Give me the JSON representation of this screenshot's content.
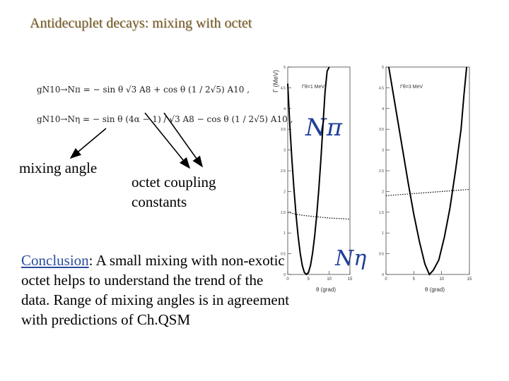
{
  "slide": {
    "title": "Antidecuplet decays: mixing with octet",
    "equations": {
      "eq1_text": "gN10→Nπ = − sin θ √3 A8 + cos θ (1 / 2√5) A10 ,",
      "eq2_text": "gN10→Nη = − sin θ (4α − 1) / √3 A8 − cos θ (1 / 2√5) A10 ,"
    },
    "labels": {
      "mixing_angle": "mixing angle",
      "octet_coupling_line1": "octet coupling",
      "octet_coupling_line2": "constants"
    },
    "conclusion": {
      "keyword": "Conclusion",
      "text": ": A small mixing with non-exotic octet helps to understand the trend of the data. Range of mixing angles is in agreement with predictions of Ch.QSM"
    },
    "symbols": {
      "n_pi": "Nπ",
      "n_eta": "Nη"
    },
    "colors": {
      "title": "#7a5a1e",
      "accent": "#2a4b9b",
      "symbol": "#1f3f9a"
    }
  },
  "chart_data": [
    {
      "type": "line",
      "ylabel": "Γ (MeV)",
      "xlabel": "θ (grad)",
      "annotation": "Γθ=1 MeV",
      "xlim": [
        0,
        15
      ],
      "ylim": [
        0,
        5
      ],
      "x_ticks": [
        0,
        5,
        10,
        15
      ],
      "y_ticks": [
        0,
        0.5,
        1,
        1.5,
        2,
        2.5,
        3,
        3.5,
        4,
        4.5,
        5
      ],
      "series": [
        {
          "style": "solid",
          "x": [
            0,
            0.5,
            1,
            1.5,
            2,
            2.5,
            3,
            3.5,
            4,
            4.5,
            5,
            5.5,
            6,
            6.5,
            7,
            7.5,
            8,
            8.5,
            9,
            9.5,
            10
          ],
          "values": [
            4.6,
            3.6,
            2.78,
            2.06,
            1.44,
            0.93,
            0.52,
            0.22,
            0.05,
            0.0,
            0.05,
            0.22,
            0.52,
            0.93,
            1.44,
            2.06,
            2.78,
            3.6,
            4.4,
            4.9,
            5.0
          ]
        },
        {
          "style": "dotted",
          "x": [
            0,
            2,
            4,
            6,
            8,
            10,
            12,
            14,
            15
          ],
          "values": [
            1.5,
            1.45,
            1.42,
            1.4,
            1.38,
            1.36,
            1.35,
            1.34,
            1.33
          ]
        }
      ]
    },
    {
      "type": "line",
      "ylabel": "",
      "xlabel": "θ (grad)",
      "annotation": "Γθ=3 MeV",
      "xlim": [
        0,
        15
      ],
      "ylim": [
        0,
        5
      ],
      "x_ticks": [
        0,
        5,
        10,
        15
      ],
      "y_ticks": [
        0,
        0.5,
        1,
        1.5,
        2,
        2.5,
        3,
        3.5,
        4,
        4.5,
        5
      ],
      "series": [
        {
          "style": "solid",
          "x": [
            0.5,
            1,
            2,
            3,
            4,
            5,
            6,
            7,
            7.8,
            8.5,
            9.5,
            10.5,
            11.5,
            12.5,
            13.5,
            14,
            14.5
          ],
          "values": [
            5.0,
            4.6,
            3.8,
            3.0,
            2.2,
            1.45,
            0.8,
            0.25,
            0.0,
            0.1,
            0.35,
            0.9,
            1.6,
            2.5,
            3.5,
            4.3,
            5.0
          ]
        },
        {
          "style": "dotted",
          "x": [
            0,
            3,
            6,
            9,
            12,
            15
          ],
          "values": [
            1.9,
            1.93,
            1.96,
            1.99,
            2.02,
            2.05
          ]
        }
      ]
    }
  ]
}
